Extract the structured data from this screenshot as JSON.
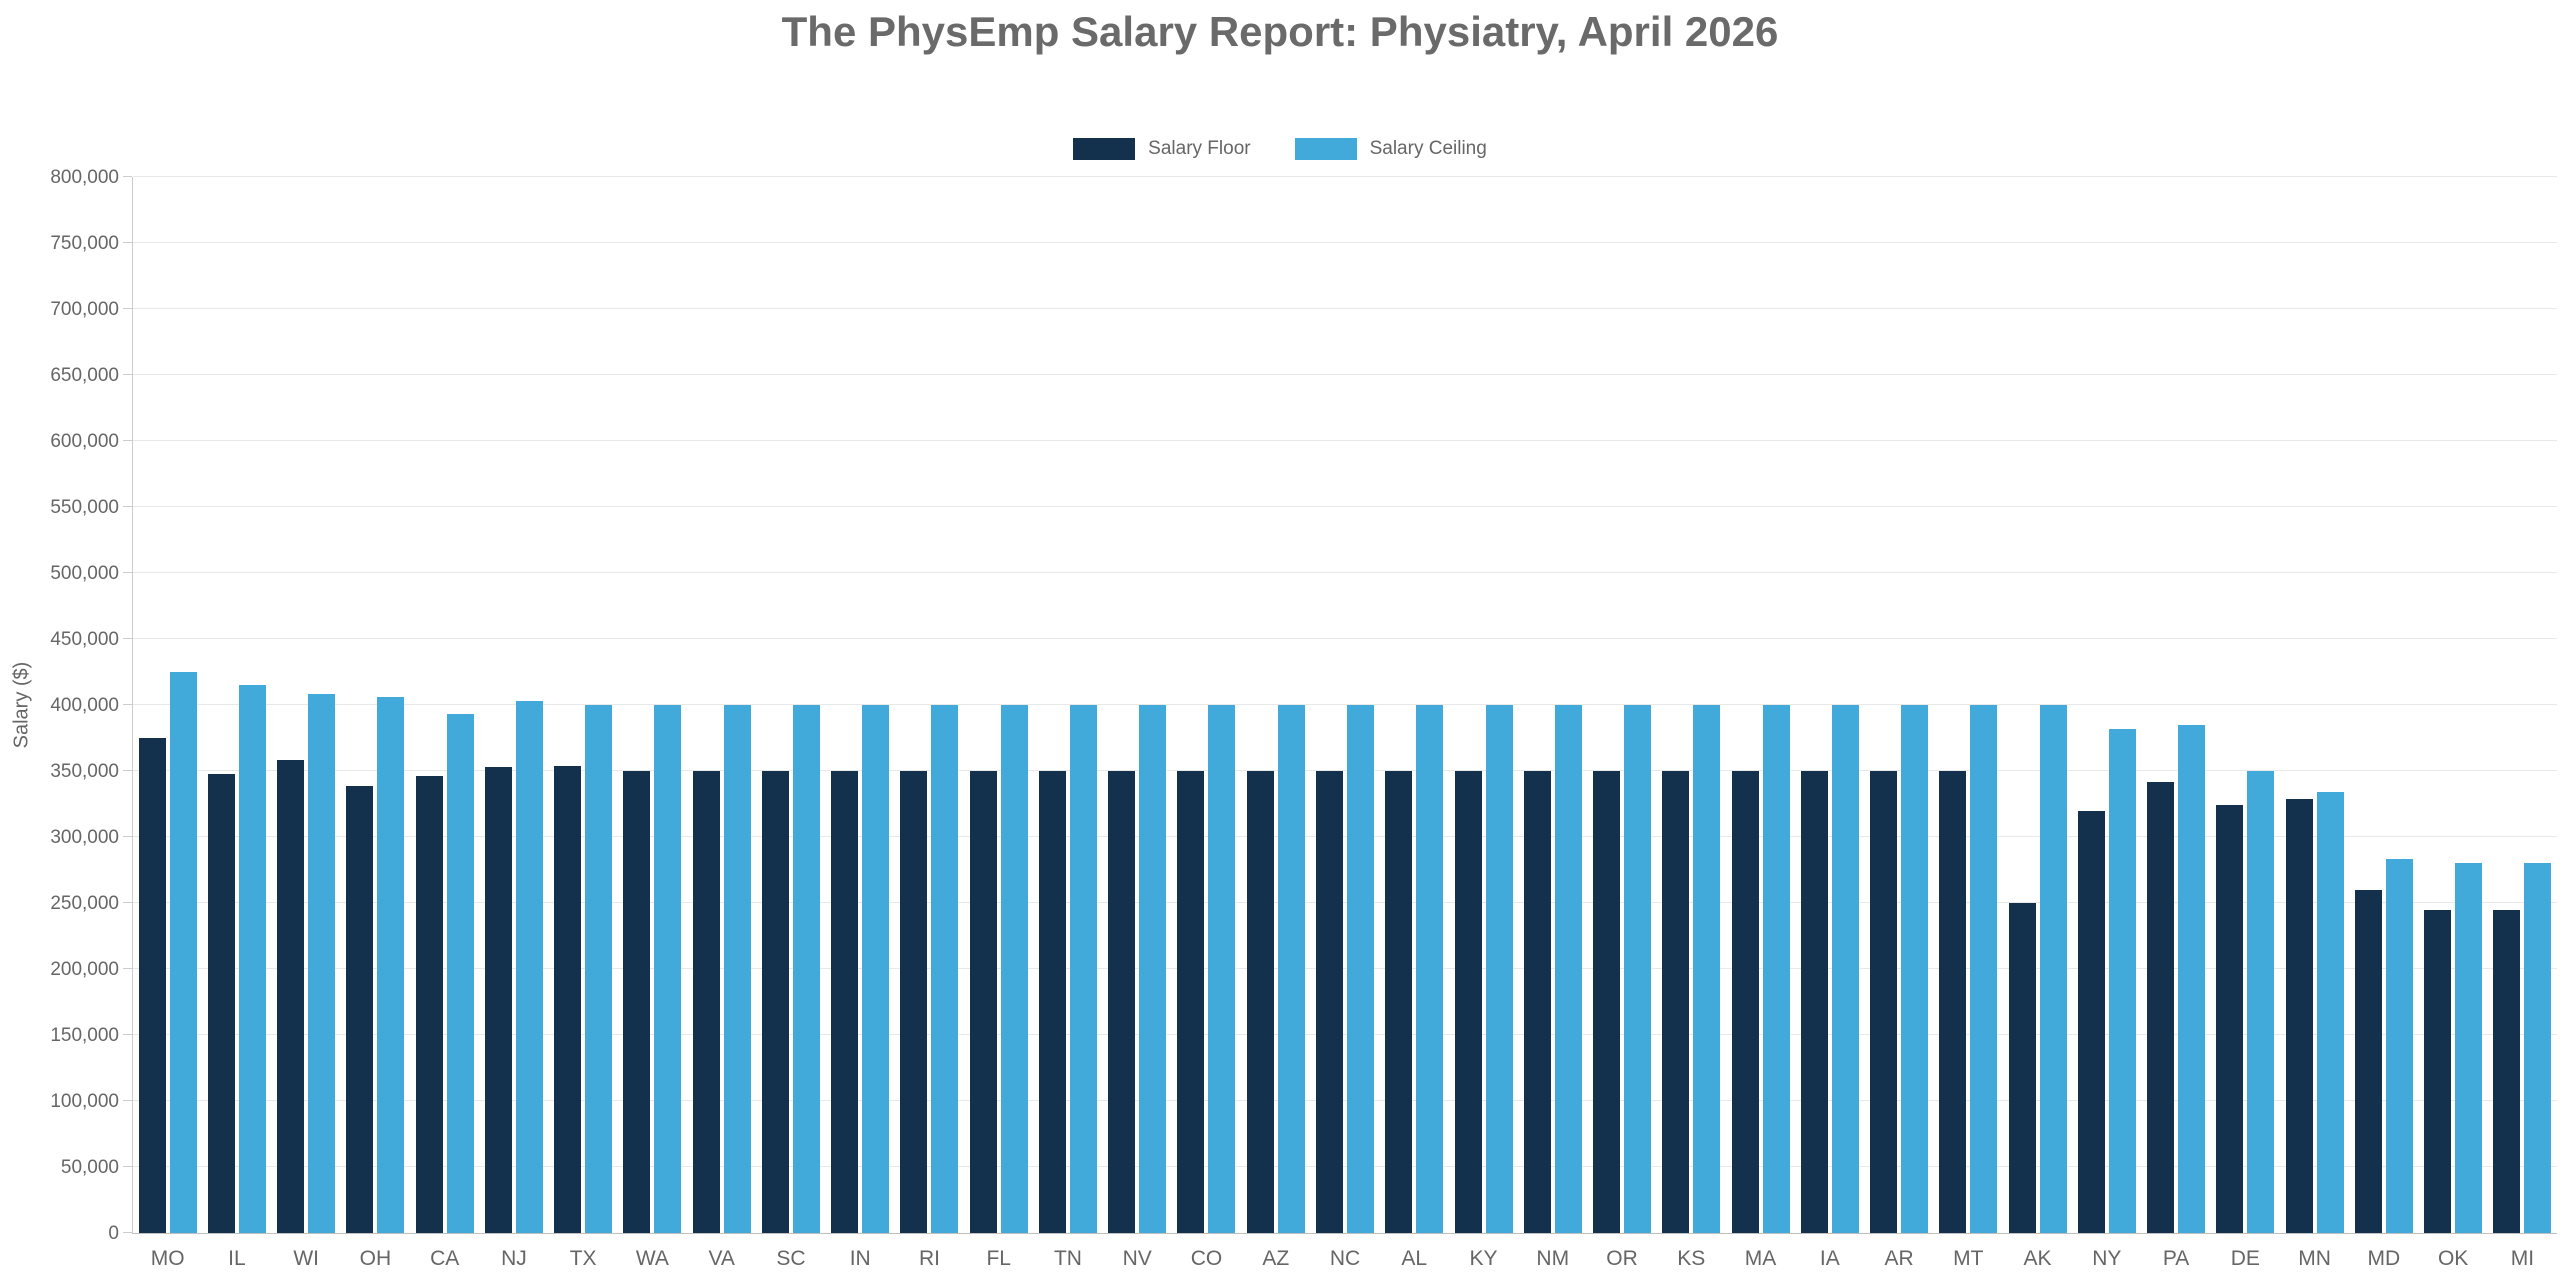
{
  "page": {
    "background": "#ffffff"
  },
  "chart_data": {
    "type": "bar",
    "title": "The PhysEmp Salary Report: Physiatry, April 2026",
    "title_color": "#6a6a6a",
    "xlabel": "",
    "ylabel": "Salary ($)",
    "ylim": [
      0,
      800000
    ],
    "ytick_step": 50000,
    "ytick_labels": [
      "0",
      "50,000",
      "100,000",
      "150,000",
      "200,000",
      "250,000",
      "300,000",
      "350,000",
      "400,000",
      "450,000",
      "500,000",
      "550,000",
      "600,000",
      "650,000",
      "700,000",
      "750,000",
      "800,000"
    ],
    "grid": true,
    "legend_position": "top-center",
    "axis_text_color": "#666666",
    "gridline_color": "#e8e8e8",
    "categories": [
      "MO",
      "IL",
      "WI",
      "OH",
      "CA",
      "NJ",
      "TX",
      "WA",
      "VA",
      "SC",
      "IN",
      "RI",
      "FL",
      "TN",
      "NV",
      "CO",
      "AZ",
      "NC",
      "AL",
      "KY",
      "NM",
      "OR",
      "KS",
      "MA",
      "IA",
      "AR",
      "MT",
      "AK",
      "NY",
      "PA",
      "DE",
      "MN",
      "MD",
      "OK",
      "MI"
    ],
    "series": [
      {
        "name": "Salary Floor",
        "color": "#13304d",
        "values": [
          375000,
          348000,
          358000,
          339000,
          346000,
          353000,
          354000,
          350000,
          350000,
          350000,
          350000,
          350000,
          350000,
          350000,
          350000,
          350000,
          350000,
          350000,
          350000,
          350000,
          350000,
          350000,
          350000,
          350000,
          350000,
          350000,
          350000,
          250000,
          320000,
          342000,
          324000,
          329000,
          260000,
          245000,
          245000
        ]
      },
      {
        "name": "Salary Ceiling",
        "color": "#42a9db",
        "values": [
          425000,
          415000,
          408000,
          406000,
          393000,
          403000,
          400000,
          400000,
          400000,
          400000,
          400000,
          400000,
          400000,
          400000,
          400000,
          400000,
          400000,
          400000,
          400000,
          400000,
          400000,
          400000,
          400000,
          400000,
          400000,
          400000,
          400000,
          400000,
          382000,
          385000,
          350000,
          334000,
          283000,
          280000,
          280000
        ]
      }
    ]
  }
}
